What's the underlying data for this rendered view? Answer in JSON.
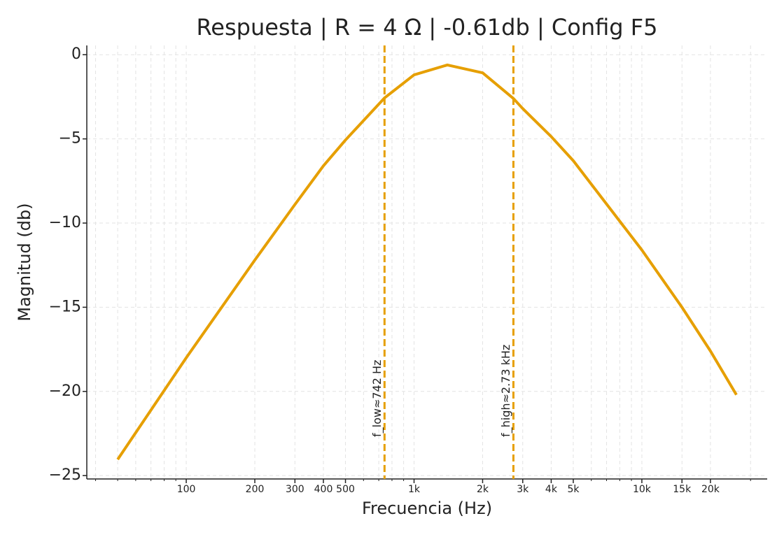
{
  "chart_data": {
    "type": "line",
    "title": "Respuesta | R = 4 Ω | -0.61db | Config F5",
    "x_label": "Frecuencia (Hz)",
    "y_label": "Magnitud (db)",
    "x": [
      50,
      100,
      200,
      300,
      400,
      500,
      742,
      1000,
      1400,
      2000,
      2730,
      3000,
      4000,
      5000,
      10000,
      15000,
      20000,
      26000
    ],
    "series": [
      {
        "name": "Magnitud",
        "color": "#e69f00",
        "values": [
          -24.04,
          -18.0,
          -12.2,
          -8.9,
          -6.6,
          -5.07,
          -2.57,
          -1.2,
          -0.61,
          -1.08,
          -2.6,
          -3.2,
          -4.86,
          -6.3,
          -11.6,
          -15.0,
          -17.6,
          -20.2
        ]
      }
    ],
    "log_x": true,
    "xlim": [
      36.6,
      35500
    ],
    "xticks": [
      100,
      200,
      300,
      400,
      500,
      {
        "value": 1000,
        "label": "1k"
      },
      {
        "value": 2000,
        "label": "2k"
      },
      {
        "value": 3000,
        "label": "3k"
      },
      {
        "value": 4000,
        "label": "4k"
      },
      {
        "value": 5000,
        "label": "5k"
      },
      {
        "value": 10000,
        "label": "10k"
      },
      {
        "value": 15000,
        "label": "15k"
      },
      {
        "value": 20000,
        "label": "20k"
      }
    ],
    "xminorticks": [
      40,
      50,
      60,
      70,
      80,
      90,
      600,
      700,
      800,
      900,
      6000,
      7000,
      8000,
      9000,
      30000
    ],
    "ylim": [
      -25.2,
      0.55
    ],
    "yticks": [
      0,
      {
        "value": -5,
        "label": "−5"
      },
      {
        "value": -10,
        "label": "−10"
      },
      {
        "value": -15,
        "label": "−15"
      },
      {
        "value": -20,
        "label": "−20"
      },
      {
        "value": -25,
        "label": "−25"
      }
    ],
    "grid": true,
    "markers": [
      {
        "x": 742,
        "label": "f_low≈742 Hz"
      },
      {
        "x": 2730,
        "label": "f_high≈2.73 kHz"
      }
    ]
  }
}
